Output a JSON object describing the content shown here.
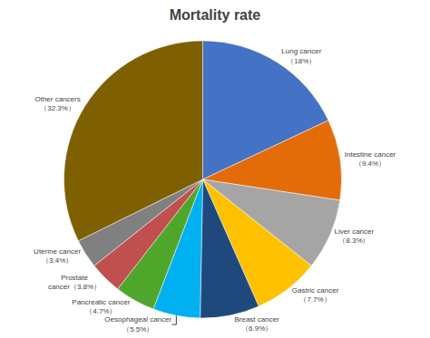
{
  "chart_data": {
    "type": "pie",
    "title": "Mortality rate",
    "categories": [
      "Lung cancer\n（18%）",
      "Intestine cancer\n（9.4%）",
      "Liver cancer\n（8.3%）",
      "Gastric cancer\n（7.7%）",
      "Breast cancer\n（6.9%）",
      "Oesophageal cancer\n（5.5%）",
      "Pancreatic cancer\n（4.7%）",
      "Prostate\ncancer（3.8%）",
      "Uterine cancer\n（3.4%）",
      "Other cancers\n（32.3%）"
    ],
    "values": [
      18.0,
      9.4,
      8.3,
      7.7,
      6.9,
      5.5,
      4.7,
      3.8,
      3.4,
      32.3
    ],
    "colors": [
      "#4472C4",
      "#E36C09",
      "#A5A5A5",
      "#FFC000",
      "#1F497D",
      "#00B0F0",
      "#4EA72A",
      "#C0504D",
      "#808080",
      "#7F6000"
    ]
  }
}
